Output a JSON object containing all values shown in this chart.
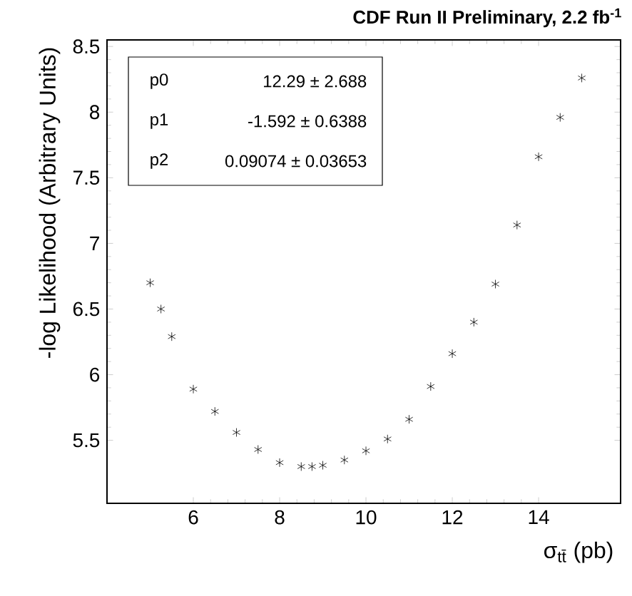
{
  "chart_data": {
    "type": "scatter",
    "title": "CDF Run II Preliminary, 2.2 fb$^{-1}$",
    "xlabel": "σ$_{tt̄}$ (pb)",
    "ylabel": "-log Likelihood (Arbitrary Units)",
    "x": [
      5,
      5.25,
      5.5,
      6,
      6.5,
      7,
      7.5,
      8,
      8.5,
      8.75,
      9,
      9.5,
      10,
      10.5,
      11,
      11.5,
      12,
      12.5,
      13,
      13.5,
      14,
      14.5,
      15
    ],
    "series": [
      {
        "color": "#000000",
        "values": [
          6.7,
          6.5,
          6.29,
          5.89,
          5.72,
          5.56,
          5.43,
          5.33,
          5.3,
          5.3,
          5.31,
          5.35,
          5.42,
          5.51,
          5.66,
          5.91,
          6.16,
          6.4,
          6.69,
          7.14,
          7.66,
          7.96,
          8.26
        ]
      }
    ],
    "marker": "cross",
    "xlim": [
      4,
      15.9
    ],
    "ylim": [
      5.02,
      8.55
    ],
    "xticks": [
      6,
      8,
      10,
      12,
      14
    ],
    "yticks": [
      5.5,
      6,
      6.5,
      7,
      7.5,
      8,
      8.5
    ],
    "annotations": [
      "p0",
      "12.29 ± 2.688",
      "p1",
      "-1.592 ± 0.6388",
      "p2",
      "0.09074 ± 0.03653"
    ]
  }
}
